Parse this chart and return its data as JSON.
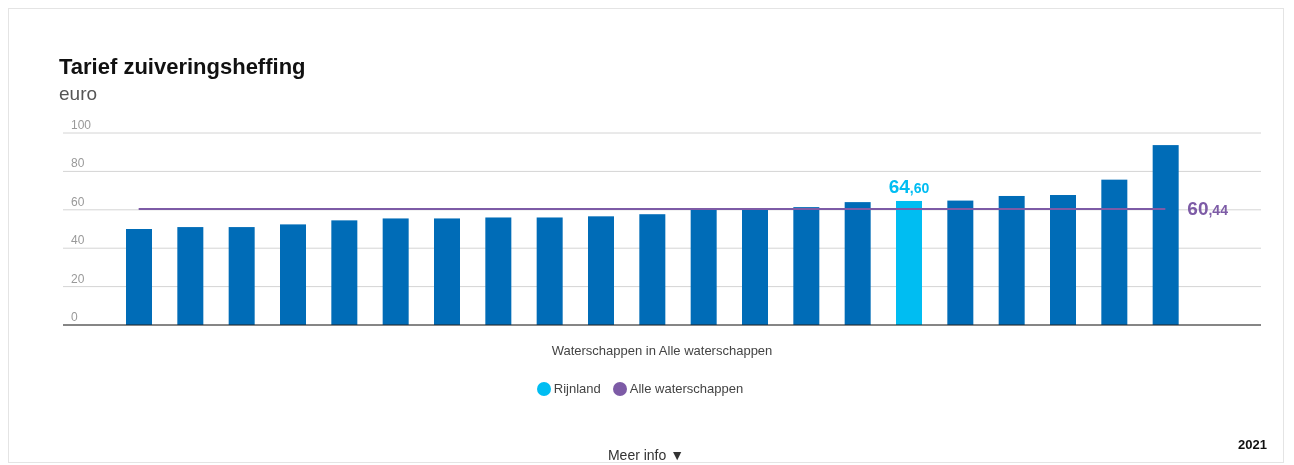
{
  "chart_data": {
    "type": "bar",
    "title": "Tarief zuiveringsheffing",
    "subtitle": "euro",
    "xlabel": "Waterschappen in Alle waterschappen",
    "categories": [
      null,
      null,
      null,
      null,
      null,
      null,
      null,
      null,
      null,
      null,
      null,
      null,
      null,
      null,
      null,
      null,
      null,
      null,
      null,
      null,
      null
    ],
    "stacked": true,
    "series": [
      {
        "color": "#006cb7",
        "values": [
          50,
          51,
          51,
          52.4,
          54.5,
          55.5,
          55.5,
          56,
          56,
          56.6,
          57.7,
          60.3,
          60.3,
          61.4,
          64,
          null,
          64.8,
          67.2,
          67.7,
          75.7,
          93.7
        ]
      },
      {
        "name": "Rijnland",
        "color": "#00bdf2",
        "values": [
          null,
          null,
          null,
          null,
          null,
          null,
          null,
          null,
          null,
          null,
          null,
          null,
          null,
          null,
          null,
          64.6,
          null,
          null,
          null,
          null,
          null
        ],
        "value_labels": [
          null,
          null,
          null,
          null,
          null,
          null,
          null,
          null,
          null,
          null,
          null,
          null,
          null,
          null,
          null,
          "64,60",
          null,
          null,
          null,
          null,
          null
        ]
      },
      {
        "name": "Alle waterschappen",
        "type": "line",
        "color": "#7d5ba6",
        "values": [
          60.44,
          60.44,
          60.44,
          60.44,
          60.44,
          60.44,
          60.44,
          60.44,
          60.44,
          60.44,
          60.44,
          60.44,
          60.44,
          60.44,
          60.44,
          60.44,
          60.44,
          60.44,
          60.44,
          60.44,
          60.44
        ],
        "value_labels": [
          null,
          null,
          null,
          null,
          null,
          null,
          null,
          null,
          null,
          null,
          null,
          null,
          null,
          null,
          null,
          null,
          null,
          null,
          null,
          null,
          "60,44"
        ]
      }
    ],
    "ylim": [
      0,
      100
    ],
    "yticks": [
      0,
      20,
      40,
      60,
      80,
      100
    ],
    "grid": "y",
    "legend": "bottom",
    "marker": "none",
    "annotations": [
      "2021",
      "Meer info ▼"
    ]
  }
}
